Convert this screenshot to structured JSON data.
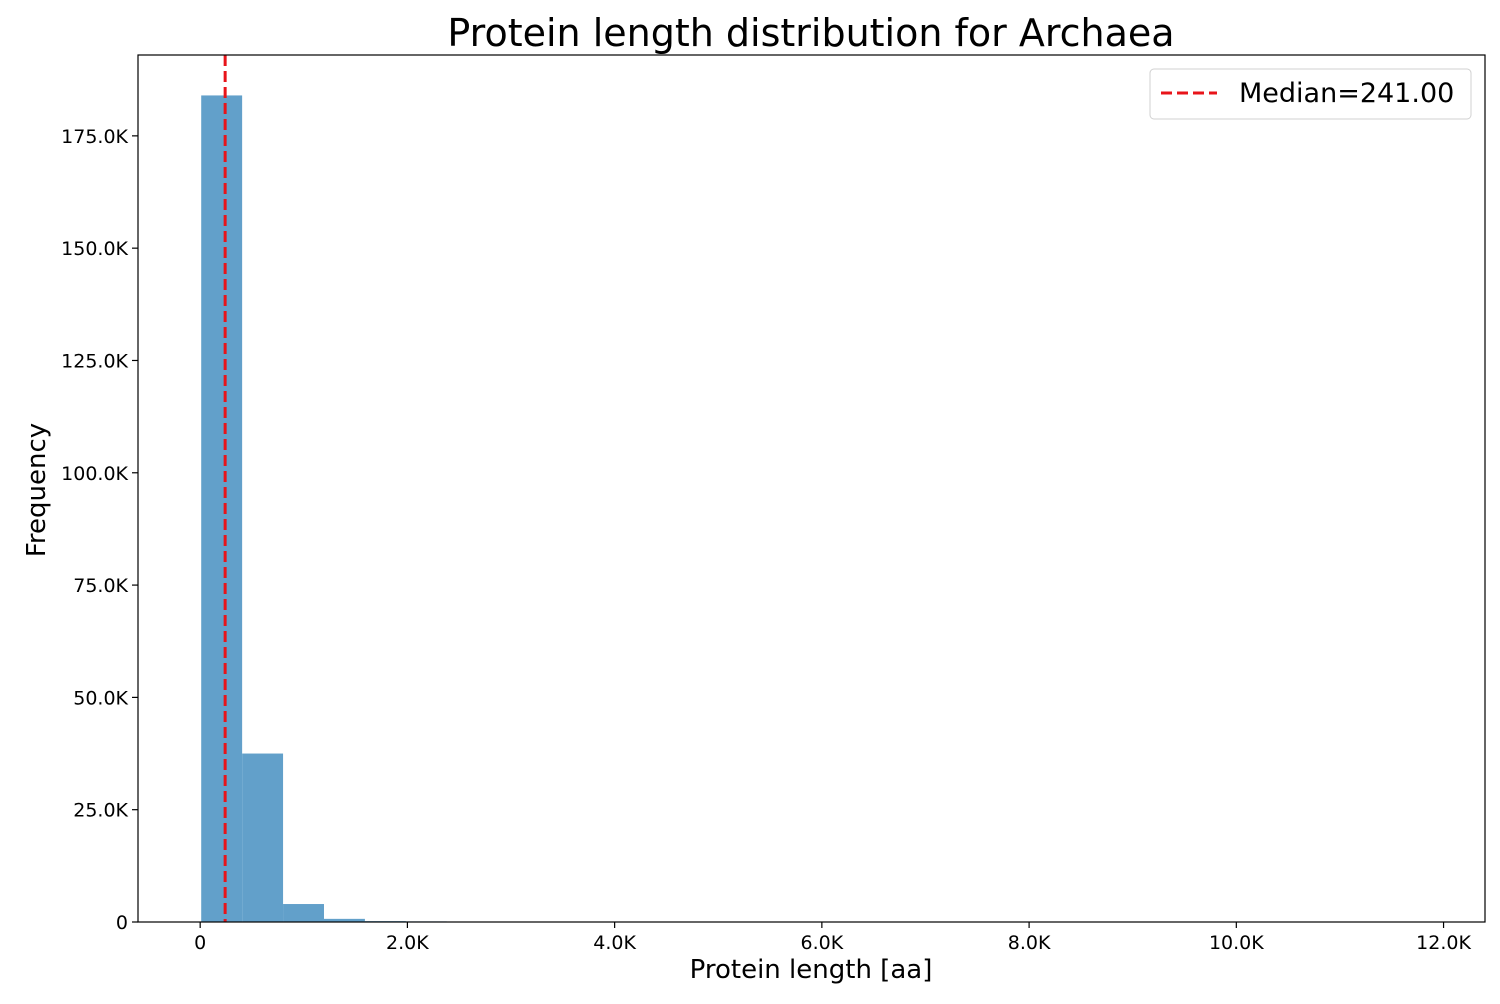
{
  "chart_data": {
    "type": "bar",
    "title": "Protein length distribution for Archaea",
    "xlabel": "Protein length [aa]",
    "ylabel": "Frequency",
    "xlim": [
      -600,
      12400
    ],
    "ylim": [
      0,
      193000
    ],
    "x_ticks": [
      {
        "value": 0,
        "label": "0"
      },
      {
        "value": 2000,
        "label": "2.0K"
      },
      {
        "value": 4000,
        "label": "4.0K"
      },
      {
        "value": 6000,
        "label": "6.0K"
      },
      {
        "value": 8000,
        "label": "8.0K"
      },
      {
        "value": 10000,
        "label": "10.0K"
      },
      {
        "value": 12000,
        "label": "12.0K"
      }
    ],
    "y_ticks": [
      {
        "value": 0,
        "label": "0"
      },
      {
        "value": 25000,
        "label": "25.0K"
      },
      {
        "value": 50000,
        "label": "50.0K"
      },
      {
        "value": 75000,
        "label": "75.0K"
      },
      {
        "value": 100000,
        "label": "100.0K"
      },
      {
        "value": 125000,
        "label": "125.0K"
      },
      {
        "value": 150000,
        "label": "150.0K"
      },
      {
        "value": 175000,
        "label": "175.0K"
      }
    ],
    "bins": [
      {
        "x0": 10,
        "x1": 405,
        "value": 184000
      },
      {
        "x0": 405,
        "x1": 800,
        "value": 37500
      },
      {
        "x0": 800,
        "x1": 1195,
        "value": 4000
      },
      {
        "x0": 1195,
        "x1": 1590,
        "value": 700
      },
      {
        "x0": 1590,
        "x1": 1985,
        "value": 200
      },
      {
        "x0": 1985,
        "x1": 2380,
        "value": 100
      }
    ],
    "median": {
      "value": 241,
      "legend_label": "Median=241.00"
    },
    "colors": {
      "bars": "#62a0ca",
      "median_line": "#e8141a"
    },
    "grid": false,
    "legend_position": "top-right"
  }
}
